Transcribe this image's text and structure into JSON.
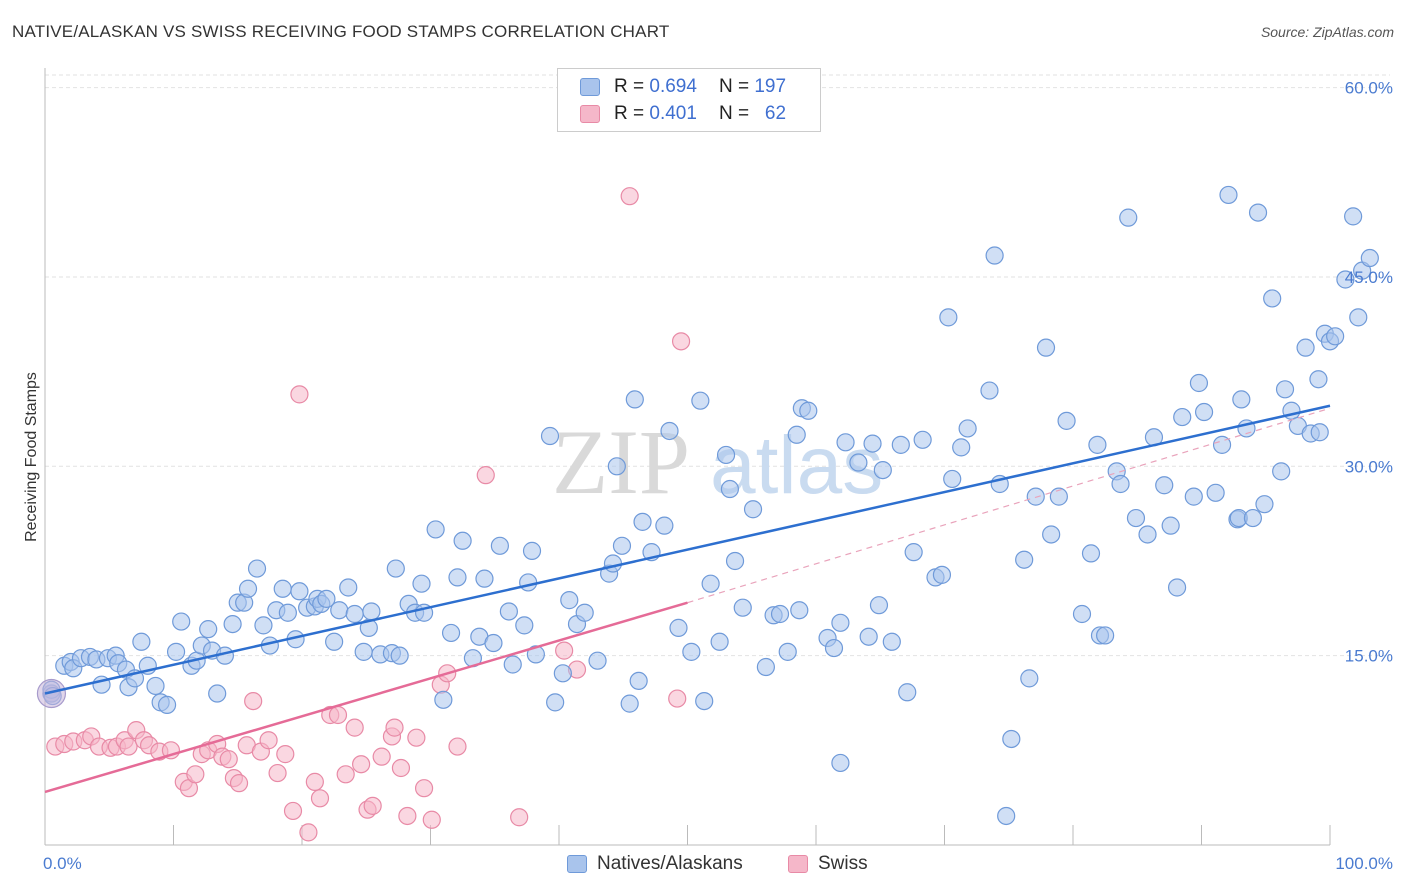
{
  "title": "NATIVE/ALASKAN VS SWISS RECEIVING FOOD STAMPS CORRELATION CHART",
  "source": "Source: ZipAtlas.com",
  "watermark": {
    "zip": "ZIP",
    "atlas": "atlas"
  },
  "colors": {
    "blue_fill": "#a9c4ec",
    "blue_edge": "#6f9ad9",
    "blue_line": "#2d6fcf",
    "pink_fill": "#f5b7c9",
    "pink_edge": "#e88aa6",
    "pink_line": "#e56b97",
    "tick_text": "#4a7bd0",
    "grid": "#e2e2e2"
  },
  "legend": {
    "rows": [
      {
        "r_label": "R =",
        "r_value": "0.694",
        "n_label": "N =",
        "n_value": "197"
      },
      {
        "r_label": "R =",
        "r_value": "0.401",
        "n_label": "N =",
        "n_value": "62"
      }
    ]
  },
  "bottom_legend": {
    "blue": "Natives/Alaskans",
    "pink": "Swiss"
  },
  "chart_data": {
    "type": "scatter",
    "title": "NATIVE/ALASKAN VS SWISS RECEIVING FOOD STAMPS CORRELATION CHART",
    "ylabel": "Receiving Food Stamps",
    "xlabel": "",
    "xlim": [
      0,
      100
    ],
    "ylim": [
      0,
      61
    ],
    "x_tick_labels": [
      "0.0%",
      "100.0%"
    ],
    "y_ticks": [
      15,
      30,
      45,
      60
    ],
    "y_tick_labels": [
      "15.0%",
      "30.0%",
      "45.0%",
      "60.0%"
    ],
    "grid": true,
    "series": [
      {
        "name": "Natives/Alaskans",
        "r": 0.694,
        "n": 197,
        "trend": {
          "x": [
            0,
            100
          ],
          "y": [
            12.0,
            34.8
          ]
        },
        "points": [
          [
            0.5,
            12.0
          ],
          [
            0.5,
            12.3
          ],
          [
            0.6,
            11.8
          ],
          [
            1.5,
            14.2
          ],
          [
            2,
            14.5
          ],
          [
            2.2,
            14.0
          ],
          [
            2.8,
            14.8
          ],
          [
            3.5,
            14.9
          ],
          [
            4,
            14.7
          ],
          [
            4.4,
            12.7
          ],
          [
            4.9,
            14.8
          ],
          [
            5.5,
            15.0
          ],
          [
            5.7,
            14.4
          ],
          [
            6.3,
            13.9
          ],
          [
            6.5,
            12.5
          ],
          [
            7,
            13.2
          ],
          [
            7.5,
            16.1
          ],
          [
            8,
            14.2
          ],
          [
            8.6,
            12.6
          ],
          [
            9,
            11.3
          ],
          [
            9.5,
            11.1
          ],
          [
            10.2,
            15.3
          ],
          [
            10.6,
            17.7
          ],
          [
            11.4,
            14.2
          ],
          [
            11.8,
            14.6
          ],
          [
            12.2,
            15.8
          ],
          [
            12.7,
            17.1
          ],
          [
            13,
            15.4
          ],
          [
            13.4,
            12.0
          ],
          [
            14,
            15.0
          ],
          [
            14.6,
            17.5
          ],
          [
            15,
            19.2
          ],
          [
            15.5,
            19.2
          ],
          [
            15.8,
            20.3
          ],
          [
            16.5,
            21.9
          ],
          [
            17,
            17.4
          ],
          [
            17.5,
            15.8
          ],
          [
            18,
            18.6
          ],
          [
            18.5,
            20.3
          ],
          [
            18.9,
            18.4
          ],
          [
            19.5,
            16.3
          ],
          [
            19.8,
            20.1
          ],
          [
            20.4,
            18.8
          ],
          [
            21,
            18.9
          ],
          [
            21.2,
            19.5
          ],
          [
            21.5,
            19.1
          ],
          [
            21.9,
            19.5
          ],
          [
            22.5,
            16.1
          ],
          [
            22.9,
            18.6
          ],
          [
            23.6,
            20.4
          ],
          [
            24.1,
            18.3
          ],
          [
            24.8,
            15.3
          ],
          [
            25.2,
            17.2
          ],
          [
            25.4,
            18.5
          ],
          [
            26.1,
            15.1
          ],
          [
            27,
            15.2
          ],
          [
            27.3,
            21.9
          ],
          [
            27.6,
            15.0
          ],
          [
            28.3,
            19.1
          ],
          [
            28.8,
            18.4
          ],
          [
            29.3,
            20.7
          ],
          [
            29.5,
            18.4
          ],
          [
            30.4,
            25.0
          ],
          [
            31,
            11.5
          ],
          [
            31.6,
            16.8
          ],
          [
            32.1,
            21.2
          ],
          [
            32.5,
            24.1
          ],
          [
            33.3,
            14.8
          ],
          [
            33.8,
            16.5
          ],
          [
            34.2,
            21.1
          ],
          [
            34.9,
            16.0
          ],
          [
            35.4,
            23.7
          ],
          [
            36.1,
            18.5
          ],
          [
            36.4,
            14.3
          ],
          [
            37.6,
            20.8
          ],
          [
            37.3,
            17.4
          ],
          [
            37.9,
            23.3
          ],
          [
            38.2,
            15.1
          ],
          [
            39.3,
            32.4
          ],
          [
            39.7,
            11.3
          ],
          [
            40.3,
            13.6
          ],
          [
            40.8,
            19.4
          ],
          [
            41.4,
            17.5
          ],
          [
            42,
            18.4
          ],
          [
            43,
            14.6
          ],
          [
            43.9,
            21.5
          ],
          [
            44.2,
            22.3
          ],
          [
            44.5,
            30.0
          ],
          [
            44.9,
            23.7
          ],
          [
            45.5,
            11.2
          ],
          [
            45.9,
            35.3
          ],
          [
            46.2,
            13.0
          ],
          [
            46.5,
            25.6
          ],
          [
            47.2,
            23.2
          ],
          [
            48.2,
            25.3
          ],
          [
            48.6,
            32.8
          ],
          [
            49.3,
            17.2
          ],
          [
            50.3,
            15.3
          ],
          [
            51,
            35.2
          ],
          [
            51.3,
            11.4
          ],
          [
            51.8,
            20.7
          ],
          [
            52.5,
            16.1
          ],
          [
            53,
            30.9
          ],
          [
            53.3,
            28.2
          ],
          [
            53.7,
            22.5
          ],
          [
            54.3,
            18.8
          ],
          [
            55.1,
            26.6
          ],
          [
            56.1,
            14.1
          ],
          [
            56.7,
            18.2
          ],
          [
            57.2,
            18.3
          ],
          [
            57.8,
            15.3
          ],
          [
            58.5,
            32.5
          ],
          [
            58.7,
            18.6
          ],
          [
            58.9,
            34.6
          ],
          [
            59.4,
            34.4
          ],
          [
            60.9,
            16.4
          ],
          [
            61.4,
            15.6
          ],
          [
            61.9,
            17.6
          ],
          [
            61.9,
            6.5
          ],
          [
            62.3,
            31.9
          ],
          [
            63.3,
            30.3
          ],
          [
            64.1,
            16.5
          ],
          [
            64.9,
            19.0
          ],
          [
            64.4,
            31.8
          ],
          [
            65.2,
            29.7
          ],
          [
            65.9,
            16.1
          ],
          [
            66.6,
            31.7
          ],
          [
            67.1,
            12.1
          ],
          [
            67.6,
            23.2
          ],
          [
            68.3,
            32.1
          ],
          [
            69.3,
            21.2
          ],
          [
            69.8,
            21.4
          ],
          [
            70.3,
            41.8
          ],
          [
            70.6,
            29.0
          ],
          [
            71.3,
            31.5
          ],
          [
            71.8,
            33.0
          ],
          [
            73.5,
            36.0
          ],
          [
            73.9,
            46.7
          ],
          [
            74.3,
            28.6
          ],
          [
            74.8,
            2.3
          ],
          [
            75.2,
            8.4
          ],
          [
            76.2,
            22.6
          ],
          [
            76.6,
            13.2
          ],
          [
            77.1,
            27.6
          ],
          [
            77.9,
            39.4
          ],
          [
            78.3,
            24.6
          ],
          [
            78.9,
            27.6
          ],
          [
            79.5,
            33.6
          ],
          [
            80.7,
            18.3
          ],
          [
            81.9,
            31.7
          ],
          [
            81.4,
            23.1
          ],
          [
            82.1,
            16.6
          ],
          [
            82.5,
            16.6
          ],
          [
            83.4,
            29.6
          ],
          [
            83.7,
            28.6
          ],
          [
            84.3,
            49.7
          ],
          [
            84.9,
            25.9
          ],
          [
            85.8,
            24.6
          ],
          [
            86.3,
            32.3
          ],
          [
            87.1,
            28.5
          ],
          [
            87.6,
            25.3
          ],
          [
            88.1,
            20.4
          ],
          [
            88.5,
            33.9
          ],
          [
            89.4,
            27.6
          ],
          [
            89.8,
            36.6
          ],
          [
            90.2,
            34.3
          ],
          [
            91.1,
            27.9
          ],
          [
            91.6,
            31.7
          ],
          [
            92.1,
            51.5
          ],
          [
            92.8,
            25.8
          ],
          [
            92.9,
            25.9
          ],
          [
            93.1,
            35.3
          ],
          [
            93.5,
            33.0
          ],
          [
            94,
            25.9
          ],
          [
            94.4,
            50.1
          ],
          [
            94.9,
            27.0
          ],
          [
            95.5,
            43.3
          ],
          [
            96.2,
            29.6
          ],
          [
            96.5,
            36.1
          ],
          [
            97,
            34.4
          ],
          [
            97.5,
            33.2
          ],
          [
            98.1,
            39.4
          ],
          [
            98.5,
            32.6
          ],
          [
            99.1,
            36.9
          ],
          [
            99.2,
            32.7
          ],
          [
            99.6,
            40.5
          ],
          [
            100.0,
            39.9
          ],
          [
            100.4,
            40.3
          ],
          [
            101.2,
            44.8
          ],
          [
            101.8,
            49.8
          ],
          [
            102.2,
            41.8
          ],
          [
            102.5,
            45.5
          ],
          [
            103.1,
            46.5
          ]
        ]
      },
      {
        "name": "Swiss",
        "r": 0.401,
        "n": 62,
        "trend": {
          "x": [
            0,
            50
          ],
          "y": [
            4.2,
            19.2
          ]
        },
        "trend_extension": {
          "x": [
            50,
            100
          ],
          "y": [
            19.2,
            34.6
          ]
        },
        "points": [
          [
            0.5,
            12.0
          ],
          [
            0.8,
            7.8
          ],
          [
            1.5,
            8.0
          ],
          [
            2.2,
            8.2
          ],
          [
            3.1,
            8.3
          ],
          [
            3.6,
            8.6
          ],
          [
            4.2,
            7.8
          ],
          [
            5.1,
            7.7
          ],
          [
            5.6,
            7.8
          ],
          [
            6.2,
            8.3
          ],
          [
            6.5,
            7.8
          ],
          [
            7.1,
            9.1
          ],
          [
            7.7,
            8.3
          ],
          [
            8.1,
            7.9
          ],
          [
            8.9,
            7.4
          ],
          [
            9.8,
            7.5
          ],
          [
            10.8,
            5.0
          ],
          [
            11.2,
            4.5
          ],
          [
            11.7,
            5.6
          ],
          [
            12.2,
            7.2
          ],
          [
            12.7,
            7.5
          ],
          [
            13.4,
            8.0
          ],
          [
            13.8,
            7.0
          ],
          [
            14.3,
            6.8
          ],
          [
            14.7,
            5.3
          ],
          [
            15.1,
            4.9
          ],
          [
            15.7,
            7.9
          ],
          [
            16.2,
            11.4
          ],
          [
            16.8,
            7.4
          ],
          [
            17.4,
            8.3
          ],
          [
            18.1,
            5.7
          ],
          [
            18.7,
            7.2
          ],
          [
            19.3,
            2.7
          ],
          [
            19.8,
            35.7
          ],
          [
            20.5,
            1.0
          ],
          [
            21,
            5.0
          ],
          [
            21.4,
            3.7
          ],
          [
            22.2,
            10.3
          ],
          [
            22.8,
            10.3
          ],
          [
            23.4,
            5.6
          ],
          [
            24.1,
            9.3
          ],
          [
            24.6,
            6.4
          ],
          [
            25.1,
            2.8
          ],
          [
            25.5,
            3.1
          ],
          [
            26.2,
            7.0
          ],
          [
            27,
            8.6
          ],
          [
            27.2,
            9.3
          ],
          [
            27.7,
            6.1
          ],
          [
            28.2,
            2.3
          ],
          [
            28.9,
            8.5
          ],
          [
            29.5,
            4.5
          ],
          [
            30.1,
            2.0
          ],
          [
            30.8,
            12.7
          ],
          [
            31.3,
            13.6
          ],
          [
            32.1,
            7.8
          ],
          [
            34.3,
            29.3
          ],
          [
            36.9,
            2.2
          ],
          [
            40.4,
            15.4
          ],
          [
            41.4,
            13.9
          ],
          [
            45.5,
            51.4
          ],
          [
            49.5,
            39.9
          ],
          [
            49.2,
            11.6
          ]
        ]
      }
    ]
  }
}
